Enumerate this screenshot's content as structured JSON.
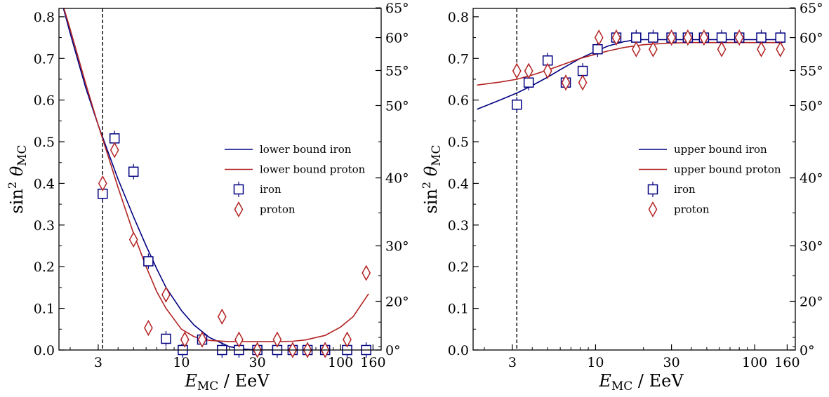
{
  "chart_data": [
    {
      "type": "scatter",
      "xscale": "log",
      "xlim": [
        1.7,
        180
      ],
      "ylim": [
        0,
        0.82
      ],
      "xticks": [
        3,
        10,
        30,
        100,
        160
      ],
      "xtick_labels": [
        "3",
        "10",
        "30",
        "100",
        "160"
      ],
      "yticks": [
        0,
        0.1,
        0.2,
        0.3,
        0.4,
        0.5,
        0.6,
        0.7,
        0.8
      ],
      "ytick_labels": [
        "0.0",
        "0.1",
        "0.2",
        "0.3",
        "0.4",
        "0.5",
        "0.6",
        "0.7",
        "0.8"
      ],
      "xlabel_main": "E",
      "xlabel_sub": "MC",
      "xlabel_unit": " / EeV",
      "ylabel_main": "sin",
      "ylabel_sup": "2",
      "ylabel_theta": " θ",
      "ylabel_sub": "MC",
      "right_ticks_deg": [
        0,
        20,
        30,
        40,
        50,
        55,
        60,
        65
      ],
      "right_tick_labels": [
        "0°",
        "20°",
        "30°",
        "40°",
        "50°",
        "55°",
        "60°",
        "65°"
      ],
      "vline_x": 3.2,
      "legend_position": "center-right",
      "legend": [
        "lower bound iron",
        "lower bound proton",
        "iron",
        "proton"
      ],
      "series": [
        {
          "name": "lower bound iron",
          "kind": "line",
          "color": "#000080",
          "x": [
            1.7,
            2,
            2.5,
            3,
            3.5,
            4,
            5,
            6,
            7,
            8,
            10,
            12,
            15,
            20,
            25,
            30,
            40
          ],
          "y": [
            0.86,
            0.76,
            0.63,
            0.54,
            0.47,
            0.41,
            0.32,
            0.25,
            0.195,
            0.15,
            0.095,
            0.06,
            0.03,
            0.008,
            0.002,
            0,
            0
          ]
        },
        {
          "name": "lower bound proton",
          "kind": "line",
          "color": "#b22222",
          "x": [
            1.7,
            2,
            2.5,
            3,
            3.5,
            4,
            5,
            6,
            7,
            8,
            10,
            12,
            15,
            20,
            30,
            40,
            50,
            60,
            80,
            100,
            120,
            150
          ],
          "y": [
            0.86,
            0.77,
            0.64,
            0.54,
            0.46,
            0.39,
            0.28,
            0.2,
            0.14,
            0.1,
            0.05,
            0.032,
            0.023,
            0.02,
            0.02,
            0.02,
            0.021,
            0.024,
            0.035,
            0.055,
            0.08,
            0.135
          ]
        },
        {
          "name": "iron",
          "kind": "marker",
          "marker": "square",
          "color": "#000080",
          "x": [
            3.2,
            3.8,
            5.0,
            6.2,
            8.0,
            10.2,
            13.5,
            18,
            23,
            30,
            40,
            50,
            62,
            80,
            110,
            145
          ],
          "y": [
            0.375,
            0.508,
            0.428,
            0.213,
            0.027,
            0.0,
            0.025,
            0.0,
            0.0,
            0.0,
            0.0,
            0.0,
            0.0,
            0.0,
            0.0,
            0.0
          ]
        },
        {
          "name": "proton",
          "kind": "marker",
          "marker": "diamond",
          "color": "#b22222",
          "x": [
            3.2,
            3.8,
            5.0,
            6.2,
            8.0,
            10.5,
            13.5,
            18,
            23,
            30,
            40,
            50,
            62,
            80,
            110,
            145
          ],
          "y": [
            0.4,
            0.48,
            0.265,
            0.053,
            0.133,
            0.025,
            0.025,
            0.08,
            0.025,
            0.0,
            0.025,
            0.0,
            0.0,
            0.0,
            0.025,
            0.185
          ]
        }
      ]
    },
    {
      "type": "scatter",
      "xscale": "log",
      "xlim": [
        1.7,
        180
      ],
      "ylim": [
        0,
        0.82
      ],
      "xticks": [
        3,
        10,
        30,
        100,
        160
      ],
      "xtick_labels": [
        "3",
        "10",
        "30",
        "100",
        "160"
      ],
      "yticks": [
        0,
        0.1,
        0.2,
        0.3,
        0.4,
        0.5,
        0.6,
        0.7,
        0.8
      ],
      "ytick_labels": [
        "0.0",
        "0.1",
        "0.2",
        "0.3",
        "0.4",
        "0.5",
        "0.6",
        "0.7",
        "0.8"
      ],
      "xlabel_main": "E",
      "xlabel_sub": "MC",
      "xlabel_unit": " / EeV",
      "ylabel_main": "sin",
      "ylabel_sup": "2",
      "ylabel_theta": " θ",
      "ylabel_sub": "MC",
      "right_ticks_deg": [
        0,
        20,
        30,
        40,
        50,
        55,
        60,
        65
      ],
      "right_tick_labels": [
        "0°",
        "20°",
        "30°",
        "40°",
        "50°",
        "55°",
        "60°",
        "65°"
      ],
      "vline_x": 3.2,
      "legend_position": "center-right",
      "legend": [
        "upper bound iron",
        "upper bound proton",
        "iron",
        "proton"
      ],
      "series": [
        {
          "name": "upper bound iron",
          "kind": "line",
          "color": "#000080",
          "x": [
            1.8,
            2.5,
            3.2,
            4,
            5,
            6,
            8,
            10,
            12,
            15,
            18,
            25,
            40,
            60,
            100,
            150
          ],
          "y": [
            0.578,
            0.6,
            0.617,
            0.635,
            0.655,
            0.673,
            0.7,
            0.717,
            0.73,
            0.74,
            0.745,
            0.745,
            0.745,
            0.745,
            0.745,
            0.745
          ]
        },
        {
          "name": "upper bound proton",
          "kind": "line",
          "color": "#b22222",
          "x": [
            1.8,
            2.5,
            3.2,
            4,
            5,
            6,
            8,
            10,
            12,
            15,
            20,
            30,
            40,
            60,
            100,
            150
          ],
          "y": [
            0.636,
            0.643,
            0.65,
            0.66,
            0.672,
            0.683,
            0.7,
            0.71,
            0.718,
            0.726,
            0.733,
            0.737,
            0.738,
            0.738,
            0.738,
            0.738
          ]
        },
        {
          "name": "iron",
          "kind": "marker",
          "marker": "square",
          "color": "#000080",
          "x": [
            3.2,
            3.8,
            5.0,
            6.5,
            8.3,
            10.3,
            13.5,
            18,
            23,
            30,
            38,
            48,
            62,
            80,
            110,
            145
          ],
          "y": [
            0.589,
            0.642,
            0.695,
            0.642,
            0.67,
            0.722,
            0.75,
            0.75,
            0.75,
            0.75,
            0.75,
            0.75,
            0.75,
            0.75,
            0.75,
            0.75
          ]
        },
        {
          "name": "proton",
          "kind": "marker",
          "marker": "diamond",
          "color": "#b22222",
          "x": [
            3.2,
            3.8,
            5.0,
            6.5,
            8.3,
            10.5,
            13.5,
            18,
            23,
            30,
            38,
            48,
            62,
            80,
            110,
            145
          ],
          "y": [
            0.67,
            0.67,
            0.67,
            0.642,
            0.642,
            0.75,
            0.75,
            0.722,
            0.722,
            0.75,
            0.75,
            0.75,
            0.722,
            0.75,
            0.722,
            0.722
          ]
        }
      ]
    }
  ]
}
